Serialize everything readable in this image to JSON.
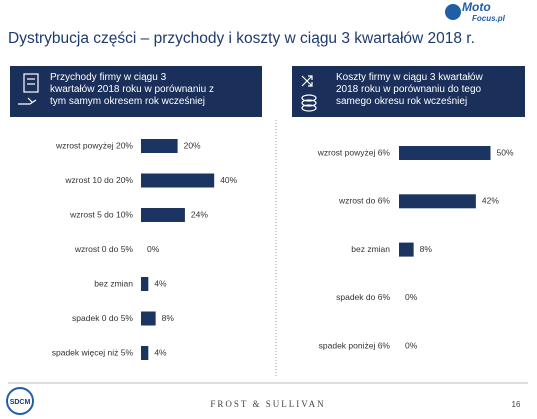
{
  "title": "Dystrybucja części – przychody i koszty w ciągu 3 kwartałów 2018 r.",
  "logo": {
    "brand": "Moto",
    "sub": "Focus.pl"
  },
  "footer": {
    "left_logo": "SDCM",
    "center": "FROST & SULLIVAN",
    "page": "16"
  },
  "chart_data": [
    {
      "type": "bar",
      "orientation": "horizontal",
      "title": "Przychody firmy w ciągu 3 kwartałów 2018 roku w porównaniu z tym samym okresem rok wcześniej",
      "categories": [
        "wzrost powyżej 20%",
        "wzrost 10 do 20%",
        "wzrost 5 do 10%",
        "wzrost 0 do 5%",
        "bez zmian",
        "spadek 0 do 5%",
        "spadek więcej niż 5%"
      ],
      "values": [
        20,
        40,
        24,
        0,
        4,
        8,
        4
      ],
      "value_labels": [
        "20%",
        "40%",
        "24%",
        "0%",
        "4%",
        "8%",
        "4%"
      ],
      "color": "#1c3461"
    },
    {
      "type": "bar",
      "orientation": "horizontal",
      "title": "Koszty firmy w ciągu 3 kwartałów 2018 roku w porównaniu do tego samego okresu rok wcześniej",
      "categories": [
        "wzrost powyżej 6%",
        "wzrost do 6%",
        "bez zmian",
        "spadek do 6%",
        "spadek poniżej 6%"
      ],
      "values": [
        50,
        42,
        8,
        0,
        0
      ],
      "value_labels": [
        "50%",
        "42%",
        "8%",
        "0%",
        "0%"
      ],
      "color": "#1c3461"
    }
  ]
}
